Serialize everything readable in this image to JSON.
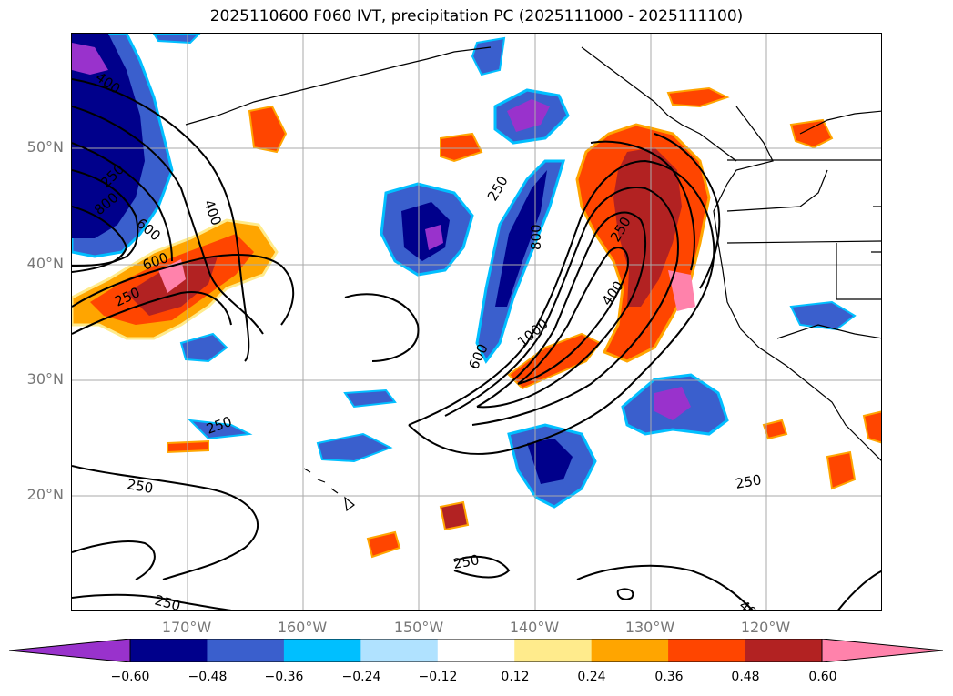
{
  "title": "2025110600 F060 IVT, precipitation PC (2025111000 - 2025111100)",
  "lat_labels": [
    "50°N",
    "40°N",
    "30°N",
    "20°N"
  ],
  "lon_labels": [
    "170°W",
    "160°W",
    "150°W",
    "140°W",
    "130°W",
    "120°W"
  ],
  "contour_labels": [
    "400",
    "250",
    "800",
    "600",
    "400",
    "250",
    "600",
    "250",
    "250",
    "250",
    "800",
    "600",
    "1000",
    "400",
    "250",
    "250",
    "400",
    "250",
    "250"
  ],
  "colorbar": {
    "colors": [
      "#9932cc",
      "#00008b",
      "#3a5fcd",
      "#00bfff",
      "#b0e2ff",
      "#ffffff",
      "#ffeb8c",
      "#ffa500",
      "#ff4500",
      "#b22222",
      "#ff82ab"
    ],
    "tick_labels": [
      "−0.60",
      "−0.48",
      "−0.36",
      "−0.24",
      "−0.12",
      "0.12",
      "0.24",
      "0.36",
      "0.48",
      "0.60"
    ]
  }
}
